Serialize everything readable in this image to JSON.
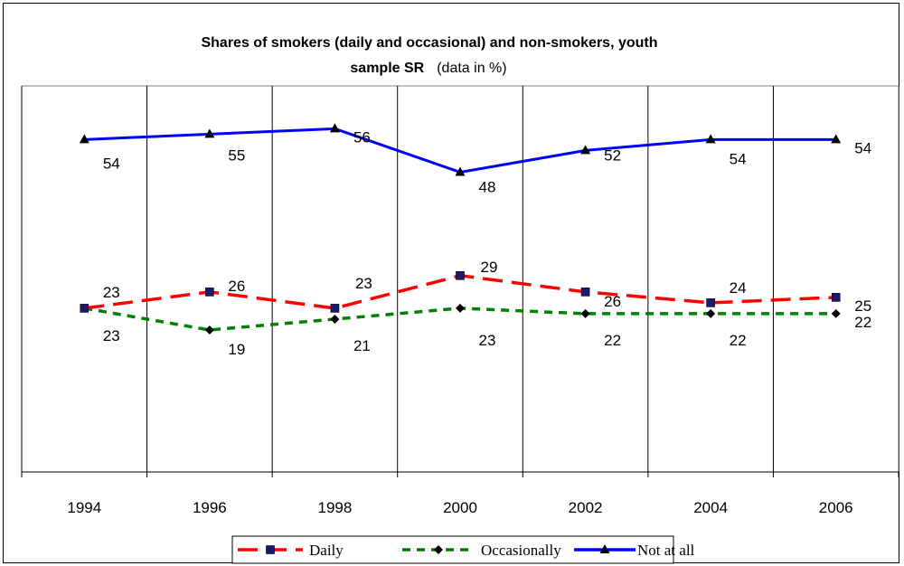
{
  "chart_data": {
    "type": "line",
    "title_line1": "Shares of smokers (daily and occasional) and non-smokers, youth",
    "title_line2": "sample SR",
    "title_note": "(data in %)",
    "xlabel": "",
    "ylabel": "",
    "categories": [
      "1994",
      "1996",
      "1998",
      "2000",
      "2002",
      "2004",
      "2006"
    ],
    "ylim": [
      0,
      70
    ],
    "grid": "vertical",
    "legend_position": "bottom",
    "series": [
      {
        "name": "Daily",
        "values": [
          23,
          26,
          23,
          29,
          26,
          24,
          25
        ],
        "color": "#ff0000",
        "marker": "square",
        "line": "long-dash"
      },
      {
        "name": "Occasionally",
        "values": [
          23,
          19,
          21,
          23,
          22,
          22,
          22
        ],
        "color": "#008000",
        "marker": "diamond",
        "line": "dash"
      },
      {
        "name": "Not at all",
        "values": [
          54,
          55,
          56,
          48,
          52,
          54,
          54
        ],
        "color": "#0000ff",
        "marker": "triangle",
        "line": "solid"
      }
    ]
  }
}
